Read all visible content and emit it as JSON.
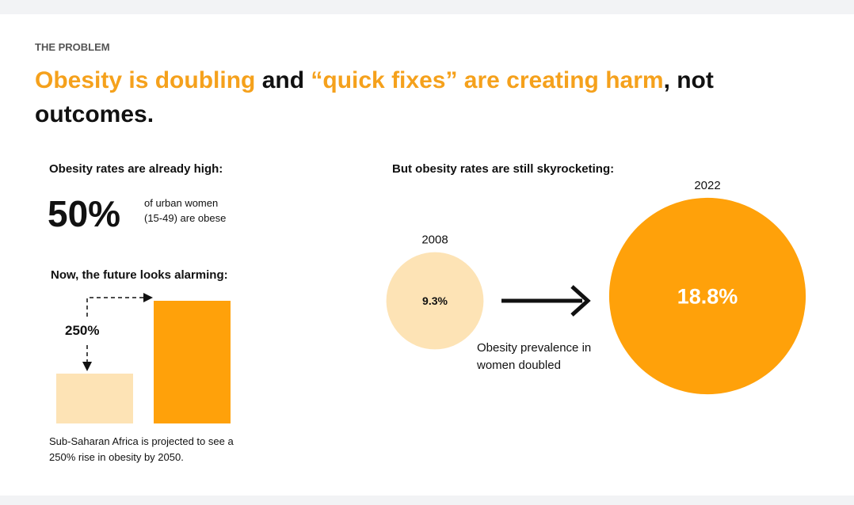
{
  "header": {
    "eyebrow": "THE PROBLEM",
    "title_parts": [
      "Obesity is doubling",
      " and ",
      "“quick fixes” are creating harm",
      ", not outcomes."
    ]
  },
  "left": {
    "heading": "Obesity rates are already high:",
    "stat": "50%",
    "stat_text": [
      "of urban women",
      "(15-49) are obese"
    ],
    "future_heading": "Now, the future looks alarming:",
    "rise_label": "250%",
    "caption": [
      "Sub-Saharan Africa is projected to see a",
      "250% rise in obesity by 2050."
    ]
  },
  "right": {
    "heading": "But obesity rates are still skyrocketing:",
    "bubbles": [
      {
        "year": "2008",
        "value": 9.3,
        "value_label": "9.3%",
        "color": "#fde3b5"
      },
      {
        "year": "2022",
        "value": 18.8,
        "value_label": "18.8%",
        "color": "#ffa10a"
      }
    ],
    "note": [
      "Obesity prevalence in",
      "women doubled"
    ]
  }
}
